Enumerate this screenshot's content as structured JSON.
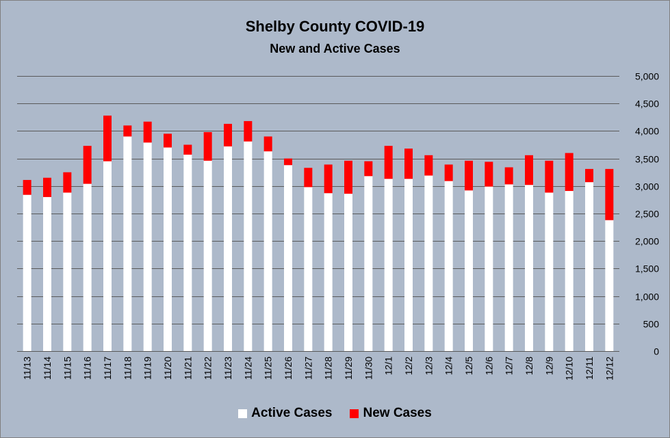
{
  "chart_data": {
    "type": "bar",
    "stacked": true,
    "title": "Shelby County COVID-19",
    "subtitle": "New and Active Cases",
    "categories": [
      "11/13",
      "11/14",
      "11/15",
      "11/16",
      "11/17",
      "11/18",
      "11/19",
      "11/20",
      "11/21",
      "11/22",
      "11/23",
      "11/24",
      "11/25",
      "11/26",
      "11/27",
      "11/28",
      "11/29",
      "11/30",
      "12/1",
      "12/2",
      "12/3",
      "12/4",
      "12/5",
      "12/6",
      "12/7",
      "12/8",
      "12/9",
      "12/10",
      "12/11",
      "12/12"
    ],
    "series": [
      {
        "name": "Active Cases",
        "color": "#ffffff",
        "values": [
          2840,
          2800,
          2880,
          3040,
          3450,
          3900,
          3790,
          3700,
          3570,
          3460,
          3720,
          3810,
          3630,
          3380,
          2980,
          2870,
          2860,
          3180,
          3130,
          3130,
          3190,
          3090,
          2920,
          2990,
          3030,
          3020,
          2880,
          2910,
          3070,
          2380
        ]
      },
      {
        "name": "New Cases",
        "color": "#ff0000",
        "values": [
          270,
          350,
          370,
          690,
          830,
          200,
          380,
          250,
          180,
          520,
          410,
          370,
          270,
          120,
          350,
          520,
          600,
          270,
          600,
          550,
          370,
          300,
          540,
          450,
          310,
          540,
          580,
          690,
          240,
          930
        ]
      }
    ],
    "ylim": [
      0,
      5000
    ],
    "yticks": [
      0,
      500,
      1000,
      1500,
      2000,
      2500,
      3000,
      3500,
      4000,
      4500,
      5000
    ],
    "ytick_labels": [
      "0",
      "500",
      "1,000",
      "1,500",
      "2,000",
      "2,500",
      "3,000",
      "3,500",
      "4,000",
      "4,500",
      "5,000"
    ],
    "yaxis_position": "right",
    "grid": true,
    "legend": "bottom",
    "background": "#adb9ca"
  }
}
